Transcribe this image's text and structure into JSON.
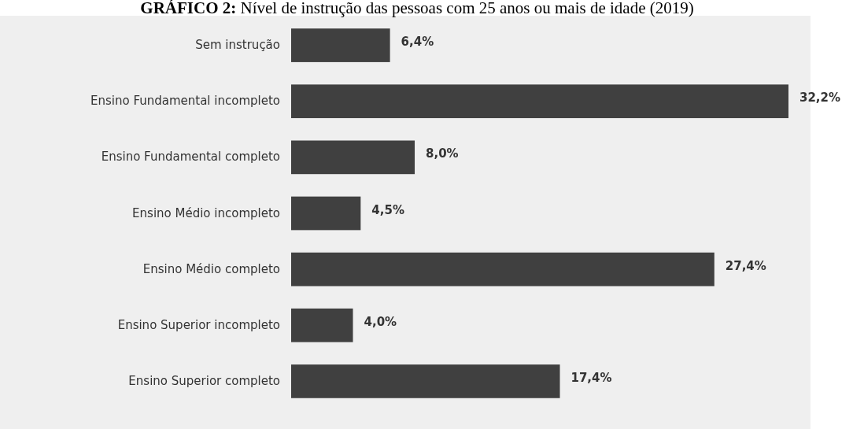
{
  "chart_data": {
    "type": "bar",
    "orientation": "horizontal",
    "title": "GRÁFICO 2: Nível de instrução das pessoas com 25 anos ou mais de idade (2019)",
    "categories": [
      "Sem instrução",
      "Ensino Fundamental incompleto",
      "Ensino Fundamental completo",
      "Ensino Médio incompleto",
      "Ensino Médio completo",
      "Ensino Superior incompleto",
      "Ensino Superior completo"
    ],
    "values": [
      6.4,
      32.2,
      8.0,
      4.5,
      27.4,
      4.0,
      17.4
    ],
    "value_labels": [
      "6,4%",
      "32,2%",
      "8,0%",
      "4,5%",
      "27,4%",
      "4,0%",
      "17,4%"
    ],
    "color": "#404040"
  }
}
